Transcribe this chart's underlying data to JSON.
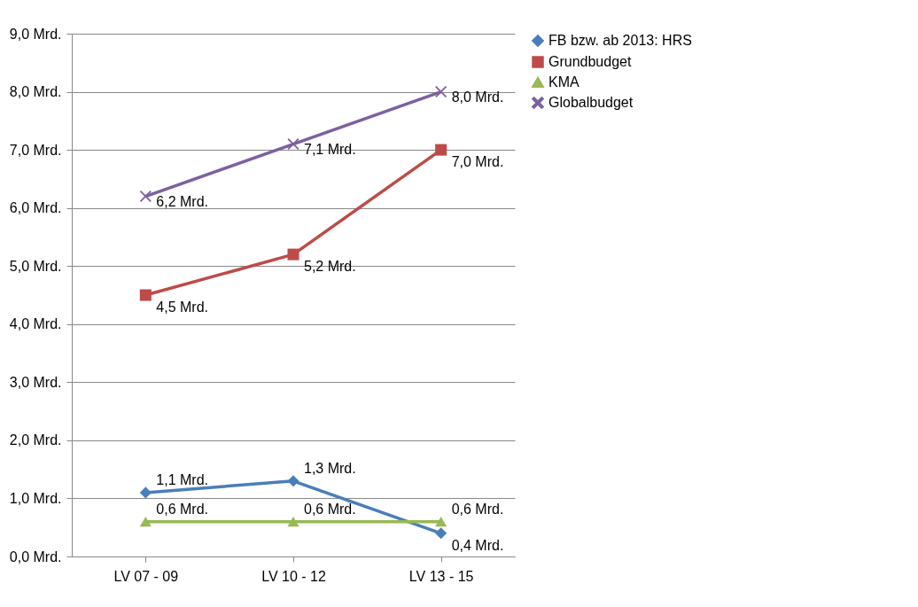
{
  "chart_data": {
    "type": "line",
    "categories": [
      "LV 07 - 09",
      "LV 10 - 12",
      "LV 13 - 15"
    ],
    "series": [
      {
        "name": "FB bzw. ab 2013: HRS",
        "color": "#4a7ebb",
        "marker": "diamond",
        "values": [
          1.1,
          1.3,
          0.4
        ],
        "value_labels": [
          "1,1 Mrd.",
          "1,3 Mrd.",
          "0,4 Mrd."
        ]
      },
      {
        "name": "Grundbudget",
        "color": "#be4b48",
        "marker": "square",
        "values": [
          4.5,
          5.2,
          7.0
        ],
        "value_labels": [
          "4,5 Mrd.",
          "5,2 Mrd.",
          "7,0 Mrd."
        ]
      },
      {
        "name": "KMA",
        "color": "#98b954",
        "marker": "triangle",
        "values": [
          0.6,
          0.6,
          0.6
        ],
        "value_labels": [
          "0,6 Mrd.",
          "0,6 Mrd.",
          "0,6 Mrd."
        ]
      },
      {
        "name": "Globalbudget",
        "color": "#7d60a0",
        "marker": "cross",
        "values": [
          6.2,
          7.1,
          8.0
        ],
        "value_labels": [
          "6,2 Mrd.",
          "7,1 Mrd.",
          "8,0 Mrd."
        ]
      }
    ],
    "ylim": [
      0,
      9
    ],
    "yticks": [
      {
        "value": 0,
        "label": "0,0 Mrd."
      },
      {
        "value": 1,
        "label": "1,0 Mrd."
      },
      {
        "value": 2,
        "label": "2,0 Mrd."
      },
      {
        "value": 3,
        "label": "3,0 Mrd."
      },
      {
        "value": 4,
        "label": "4,0 Mrd."
      },
      {
        "value": 5,
        "label": "5,0 Mrd."
      },
      {
        "value": 6,
        "label": "6,0 Mrd."
      },
      {
        "value": 7,
        "label": "7,0 Mrd."
      },
      {
        "value": 8,
        "label": "8,0 Mrd."
      },
      {
        "value": 9,
        "label": "9,0 Mrd."
      }
    ],
    "grid": "y",
    "legend": "right"
  }
}
